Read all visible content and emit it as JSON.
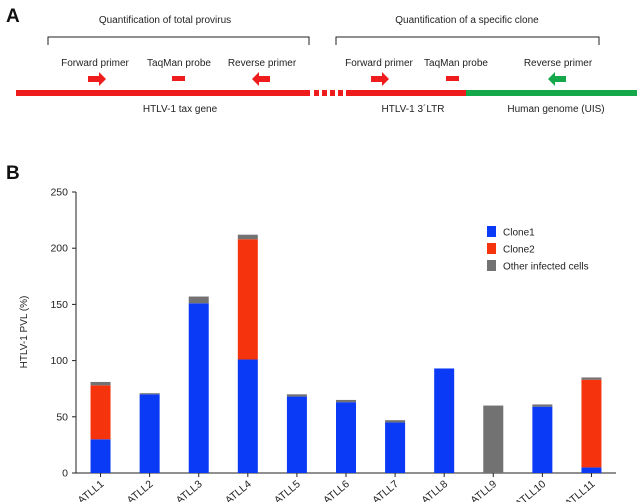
{
  "panel_a": {
    "letter": "A",
    "left_group_title": "Quantification of total provirus",
    "right_group_title": "Quantification of a specific clone",
    "left_forward": "Forward primer",
    "left_probe": "TaqMan probe",
    "left_reverse": "Reverse primer",
    "right_forward": "Forward primer",
    "right_probe": "TaqMan probe",
    "right_reverse": "Reverse primer",
    "tax_gene": "HTLV-1 tax gene",
    "ltr": "HTLV-1 3´LTR",
    "human_genome": "Human genome (UIS)",
    "colors": {
      "provirus": "#ee1c1c",
      "genome": "#15a84a",
      "primer": "#ee1c1c",
      "reverse_genome": "#15a84a"
    }
  },
  "panel_b": {
    "letter": "B"
  },
  "chart_data": {
    "type": "bar",
    "stacked": true,
    "ylabel": "HTLV-1 PVL (%)",
    "ylim": [
      0,
      250
    ],
    "yticks": [
      0,
      50,
      100,
      150,
      200,
      250
    ],
    "categories": [
      "ATLL1",
      "ATLL2",
      "ATLL3",
      "ATLL4",
      "ATLL5",
      "ATLL6",
      "ATLL7",
      "ATLL8",
      "ATLL9",
      "ATLL10",
      "ATLL11"
    ],
    "series": [
      {
        "name": "Clone1",
        "color": "#0a3af5",
        "values": [
          30,
          70,
          151,
          101,
          68,
          63,
          45,
          93,
          0,
          59,
          5
        ]
      },
      {
        "name": "Clone2",
        "color": "#f5330c",
        "values": [
          48,
          0,
          0,
          107,
          0,
          0,
          0,
          0,
          0,
          0,
          78
        ]
      },
      {
        "name": "Other infected cells",
        "color": "#727272",
        "values": [
          3,
          1,
          6,
          4,
          2,
          2,
          2,
          0,
          60,
          2,
          2
        ]
      }
    ],
    "legend_position": "top-right",
    "grid": false
  }
}
